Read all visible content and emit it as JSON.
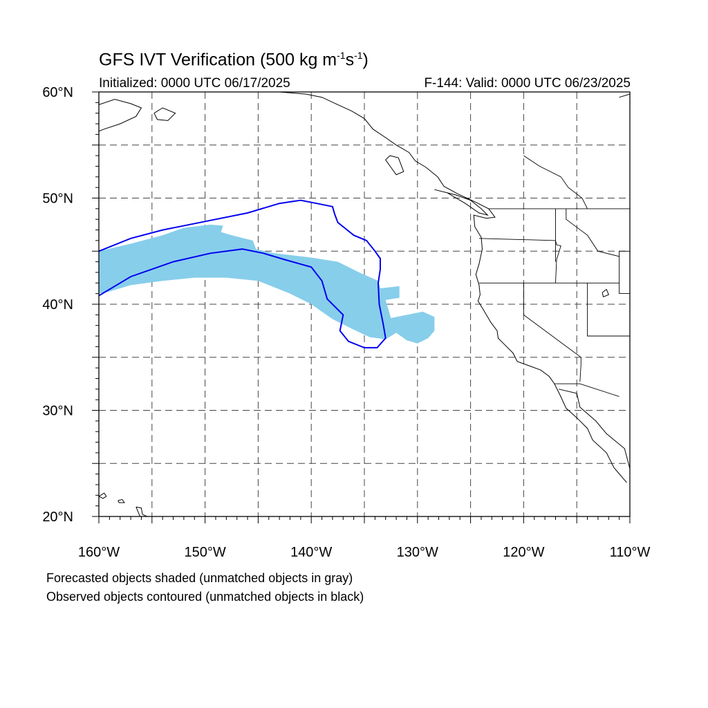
{
  "title": {
    "prefix": "GFS IVT Verification (500 kg m",
    "exp1": "-1",
    "mid": "s",
    "exp2": "-1",
    "suffix": ")"
  },
  "initialized": "Initialized: 0000 UTC 06/17/2025",
  "valid": "F-144: Valid: 0000 UTC 06/23/2025",
  "axes": {
    "lon_range": [
      -160,
      -110
    ],
    "lat_range": [
      20,
      60
    ],
    "lat_labels": [
      {
        "lat": 60,
        "text": "60°N"
      },
      {
        "lat": 50,
        "text": "50°N"
      },
      {
        "lat": 40,
        "text": "40°N"
      },
      {
        "lat": 30,
        "text": "30°N"
      },
      {
        "lat": 20,
        "text": "20°N"
      }
    ],
    "lon_labels": [
      {
        "lon": -160,
        "text": "160°W"
      },
      {
        "lon": -150,
        "text": "150°W"
      },
      {
        "lon": -140,
        "text": "140°W"
      },
      {
        "lon": -130,
        "text": "130°W"
      },
      {
        "lon": -120,
        "text": "120°W"
      },
      {
        "lon": -110,
        "text": "110°W"
      }
    ],
    "grid_interval_deg": 5
  },
  "legend": {
    "line1": "Forecasted objects shaded (unmatched objects in gray)",
    "line2": "Observed objects contoured (unmatched objects in black)"
  },
  "colors": {
    "forecast_fill": "#87ceeb",
    "observed_contour": "#0000ee",
    "coastline": "#000000",
    "grid": "#444444"
  },
  "forecast_object": [
    [
      -160,
      45.0
    ],
    [
      -157,
      45.7
    ],
    [
      -154,
      46.5
    ],
    [
      -152,
      47.2
    ],
    [
      -149.5,
      47.5
    ],
    [
      -148.3,
      47.4
    ],
    [
      -148.5,
      46.8
    ],
    [
      -147.5,
      46.5
    ],
    [
      -145.5,
      46.0
    ],
    [
      -145.2,
      45.2
    ],
    [
      -143.5,
      44.8
    ],
    [
      -140,
      44.4
    ],
    [
      -137.5,
      44.0
    ],
    [
      -135.5,
      43.0
    ],
    [
      -133.7,
      42.2
    ],
    [
      -133.5,
      41.5
    ],
    [
      -131.7,
      41.7
    ],
    [
      -131.7,
      40.6
    ],
    [
      -133.0,
      40.4
    ],
    [
      -132.5,
      38.7
    ],
    [
      -131.0,
      39.0
    ],
    [
      -129.5,
      39.3
    ],
    [
      -128.4,
      38.8
    ],
    [
      -128.4,
      37.5
    ],
    [
      -129.0,
      36.8
    ],
    [
      -130.0,
      36.3
    ],
    [
      -131.0,
      36.6
    ],
    [
      -132.0,
      37.3
    ],
    [
      -133.0,
      36.7
    ],
    [
      -134.5,
      36.9
    ],
    [
      -136.0,
      37.6
    ],
    [
      -138.0,
      38.6
    ],
    [
      -140.0,
      40.0
    ],
    [
      -142.0,
      41.0
    ],
    [
      -145.0,
      42.2
    ],
    [
      -148.0,
      42.5
    ],
    [
      -151.0,
      42.5
    ],
    [
      -154.0,
      42.2
    ],
    [
      -157.0,
      41.8
    ],
    [
      -159.0,
      41.2
    ],
    [
      -160,
      41.0
    ]
  ],
  "observed_contours": [
    [
      [
        -160,
        45.0
      ],
      [
        -157,
        46.2
      ],
      [
        -154,
        47.0
      ],
      [
        -150,
        47.8
      ],
      [
        -146,
        48.6
      ],
      [
        -143,
        49.5
      ],
      [
        -141,
        49.8
      ],
      [
        -139.5,
        49.5
      ],
      [
        -138,
        49.2
      ],
      [
        -137.8,
        48.5
      ],
      [
        -137.5,
        47.7
      ],
      [
        -136,
        46.5
      ],
      [
        -134.8,
        46.0
      ],
      [
        -134.0,
        45.0
      ],
      [
        -133.5,
        44.3
      ],
      [
        -133.5,
        43.3
      ],
      [
        -133.7,
        42.0
      ],
      [
        -133.6,
        40.0
      ],
      [
        -133.2,
        38.0
      ],
      [
        -133.0,
        36.8
      ],
      [
        -133.8,
        35.9
      ],
      [
        -135.0,
        35.9
      ],
      [
        -136.5,
        36.5
      ],
      [
        -137.3,
        37.5
      ],
      [
        -137.0,
        39.0
      ],
      [
        -138.5,
        40.5
      ],
      [
        -139.0,
        42.2
      ],
      [
        -140.0,
        43.5
      ],
      [
        -142.5,
        44.2
      ],
      [
        -144.5,
        44.8
      ],
      [
        -146.5,
        45.2
      ],
      [
        -149.5,
        44.8
      ],
      [
        -153,
        44.0
      ],
      [
        -157,
        42.6
      ],
      [
        -160,
        40.8
      ]
    ]
  ],
  "coastlines": [
    [
      [
        -160,
        58.8
      ],
      [
        -158.5,
        59.3
      ],
      [
        -157,
        58.9
      ],
      [
        -156,
        58.5
      ],
      [
        -156.5,
        57.7
      ],
      [
        -158,
        57.0
      ],
      [
        -159.5,
        56.5
      ],
      [
        -160,
        56.3
      ]
    ],
    [
      [
        -154.8,
        58.0
      ],
      [
        -154.0,
        58.5
      ],
      [
        -152.8,
        58.0
      ],
      [
        -153.5,
        57.3
      ],
      [
        -154.5,
        57.4
      ],
      [
        -154.8,
        58.0
      ]
    ],
    [
      [
        -143,
        60
      ],
      [
        -140.5,
        59.8
      ],
      [
        -139,
        59.5
      ],
      [
        -137.5,
        58.8
      ],
      [
        -136.2,
        58.2
      ],
      [
        -135,
        57.5
      ],
      [
        -134.2,
        56.5
      ],
      [
        -133,
        55.7
      ],
      [
        -132,
        55.0
      ],
      [
        -130.8,
        54.3
      ],
      [
        -130.2,
        53.5
      ],
      [
        -129.2,
        52.9
      ],
      [
        -128.1,
        52.0
      ],
      [
        -127.5,
        51.1
      ],
      [
        -126.2,
        50.4
      ],
      [
        -124.5,
        49.6
      ],
      [
        -123.3,
        49.0
      ],
      [
        -122.7,
        48.2
      ],
      [
        -123.5,
        48.1
      ],
      [
        -124.7,
        48.4
      ],
      [
        -124.6,
        47.3
      ],
      [
        -124.0,
        46.3
      ],
      [
        -123.9,
        45.2
      ],
      [
        -124.2,
        43.8
      ],
      [
        -124.5,
        42.8
      ],
      [
        -124.2,
        41.8
      ],
      [
        -124.1,
        40.9
      ],
      [
        -124.3,
        40.3
      ],
      [
        -123.8,
        39.5
      ],
      [
        -123.1,
        38.3
      ],
      [
        -122.5,
        37.5
      ],
      [
        -122.4,
        36.8
      ],
      [
        -121.9,
        36.3
      ],
      [
        -121.0,
        35.4
      ],
      [
        -120.6,
        34.6
      ],
      [
        -119.2,
        34.1
      ],
      [
        -118.4,
        33.8
      ],
      [
        -117.6,
        33.2
      ],
      [
        -117.1,
        32.5
      ],
      [
        -116.6,
        31.5
      ],
      [
        -116.0,
        30.2
      ],
      [
        -115.0,
        29.3
      ],
      [
        -114.0,
        28.3
      ],
      [
        -113.5,
        27.2
      ],
      [
        -112.2,
        26.0
      ],
      [
        -111.5,
        24.6
      ],
      [
        -110.3,
        23.2
      ]
    ],
    [
      [
        -116.7,
        32.0
      ],
      [
        -115.0,
        31.6
      ],
      [
        -114.7,
        30.3
      ],
      [
        -113.2,
        29.0
      ],
      [
        -112.2,
        27.8
      ],
      [
        -110.5,
        26.4
      ],
      [
        -110.0,
        24.5
      ]
    ],
    [
      [
        -128.4,
        50.8
      ],
      [
        -127.2,
        50.5
      ],
      [
        -125.5,
        49.5
      ],
      [
        -124.2,
        48.6
      ],
      [
        -123.4,
        48.4
      ],
      [
        -124.0,
        49.0
      ],
      [
        -125.0,
        49.8
      ],
      [
        -126.4,
        50.3
      ],
      [
        -128.4,
        50.8
      ]
    ],
    [
      [
        -132.6,
        54.0
      ],
      [
        -131.8,
        53.8
      ],
      [
        -131.3,
        52.5
      ],
      [
        -132.0,
        52.2
      ],
      [
        -132.5,
        52.9
      ],
      [
        -133.0,
        53.6
      ],
      [
        -132.6,
        54.0
      ]
    ],
    [
      [
        -112.6,
        41.1
      ],
      [
        -112.2,
        41.4
      ],
      [
        -112.0,
        40.9
      ],
      [
        -112.5,
        40.7
      ],
      [
        -112.6,
        41.1
      ]
    ],
    [
      [
        -160,
        21.9
      ],
      [
        -159.5,
        22.2
      ],
      [
        -159.3,
        21.9
      ],
      [
        -159.6,
        21.7
      ],
      [
        -160,
        21.9
      ]
    ],
    [
      [
        -158.2,
        21.5
      ],
      [
        -157.8,
        21.6
      ],
      [
        -157.6,
        21.3
      ],
      [
        -158.1,
        21.3
      ],
      [
        -158.2,
        21.5
      ]
    ],
    [
      [
        -156.5,
        20.9
      ],
      [
        -156.0,
        20.8
      ],
      [
        -155.9,
        20.2
      ],
      [
        -155.0,
        19.8
      ],
      [
        -155.4,
        19.4
      ],
      [
        -156.0,
        19.7
      ],
      [
        -156.5,
        20.9
      ]
    ],
    [
      [
        -111,
        59.5
      ],
      [
        -110,
        59.8
      ]
    ]
  ],
  "borders": [
    [
      [
        -123.3,
        49.0
      ],
      [
        -110,
        49.0
      ]
    ],
    [
      [
        -124.2,
        46.2
      ],
      [
        -117,
        46.0
      ],
      [
        -116.9,
        45.6
      ],
      [
        -116.5,
        45.5
      ],
      [
        -116.9,
        44.2
      ],
      [
        -117.0,
        42.0
      ]
    ],
    [
      [
        -124.2,
        42.0
      ],
      [
        -111.0,
        42.0
      ]
    ],
    [
      [
        -120.0,
        42.0
      ],
      [
        -120.0,
        39.0
      ],
      [
        -114.6,
        35.0
      ],
      [
        -114.6,
        34.3
      ],
      [
        -114.7,
        32.7
      ]
    ],
    [
      [
        -117.1,
        32.5
      ],
      [
        -114.7,
        32.5
      ],
      [
        -111.0,
        31.3
      ]
    ],
    [
      [
        -117.0,
        49.0
      ],
      [
        -117.0,
        44.0
      ]
    ],
    [
      [
        -116.0,
        49.0
      ],
      [
        -116.0,
        48.0
      ],
      [
        -114.0,
        46.5
      ],
      [
        -113.0,
        45.0
      ],
      [
        -111.0,
        44.5
      ],
      [
        -111.0,
        45.0
      ],
      [
        -110,
        45.0
      ]
    ],
    [
      [
        -111.0,
        44.5
      ],
      [
        -111.0,
        41.0
      ],
      [
        -110,
        41.0
      ]
    ],
    [
      [
        -114.0,
        42.0
      ],
      [
        -114.0,
        37.0
      ],
      [
        -110,
        37.0
      ]
    ],
    [
      [
        -120.0,
        54.0
      ],
      [
        -118.5,
        53.0
      ],
      [
        -116.5,
        52.0
      ],
      [
        -115.8,
        51.0
      ],
      [
        -114.5,
        50.0
      ],
      [
        -114.0,
        49.0
      ]
    ]
  ]
}
